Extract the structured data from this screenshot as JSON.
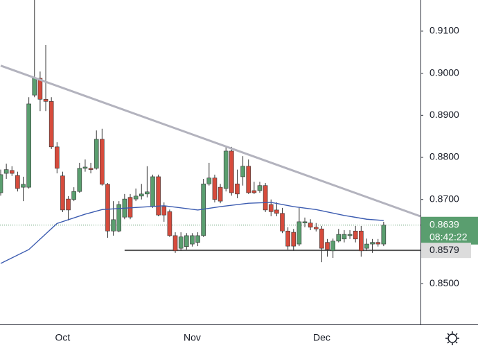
{
  "chart_data": {
    "type": "candlestick",
    "categories": [
      null,
      null,
      null,
      null,
      null,
      null,
      null,
      null,
      null,
      null,
      null,
      "Oct",
      null,
      null,
      null,
      null,
      null,
      null,
      null,
      null,
      null,
      null,
      null,
      null,
      null,
      null,
      null,
      null,
      null,
      null,
      null,
      null,
      null,
      null,
      "Nov",
      null,
      null,
      null,
      null,
      null,
      null,
      null,
      null,
      null,
      null,
      null,
      null,
      null,
      null,
      null,
      null,
      null,
      null,
      null,
      null,
      null,
      null,
      "Dec",
      null,
      null,
      null,
      null,
      null,
      null,
      null,
      null,
      null,
      null,
      null
    ],
    "open": [
      0.8716,
      0.8762,
      0.8769,
      0.8757,
      0.8729,
      0.8729,
      0.8948,
      0.8988,
      0.8938,
      0.8933,
      0.8825,
      0.8756,
      0.8701,
      0.87,
      0.8719,
      0.8774,
      0.8774,
      0.8774,
      0.8843,
      0.8736,
      0.8625,
      0.8625,
      0.8658,
      0.8705,
      0.8701,
      0.8708,
      0.8713,
      0.8683,
      0.8754,
      0.8683,
      0.8671,
      0.8614,
      0.8584,
      0.8588,
      0.8594,
      0.8598,
      0.8614,
      0.8737,
      0.8751,
      0.8729,
      0.8726,
      0.8815,
      0.8737,
      0.8754,
      0.8779,
      0.8721,
      0.8721,
      0.8733,
      0.8688,
      0.8675,
      0.8667,
      0.8625,
      0.8622,
      0.8594,
      0.8644,
      0.8644,
      0.8634,
      0.863,
      0.8598,
      0.8578,
      0.8601,
      0.8606,
      0.8614,
      0.8625,
      0.8625,
      0.8584,
      0.8594,
      0.8598,
      0.8594
    ],
    "high": [
      0.8771,
      0.8785,
      0.8779,
      0.8766,
      0.8754,
      0.8943,
      0.9174,
      0.9004,
      0.9067,
      0.8943,
      0.8836,
      0.8766,
      0.8708,
      0.8729,
      0.8787,
      0.8795,
      0.8787,
      0.8864,
      0.8868,
      0.8739,
      0.8696,
      0.8696,
      0.8713,
      0.8713,
      0.8726,
      0.8737,
      0.8779,
      0.8759,
      0.8759,
      0.8693,
      0.8676,
      0.8622,
      0.8622,
      0.862,
      0.862,
      0.8622,
      0.8749,
      0.8787,
      0.8759,
      0.8737,
      0.8828,
      0.8825,
      0.8771,
      0.8803,
      0.8795,
      0.8742,
      0.8742,
      0.8739,
      0.87,
      0.8693,
      0.868,
      0.8634,
      0.863,
      0.868,
      0.8657,
      0.8653,
      0.8644,
      0.8637,
      0.8606,
      0.8607,
      0.863,
      0.8627,
      0.8627,
      0.8637,
      0.8637,
      0.8607,
      0.8606,
      0.8606,
      0.8647
    ],
    "low": [
      0.8709,
      0.8749,
      0.8756,
      0.8719,
      0.8696,
      0.8726,
      0.8943,
      0.891,
      0.891,
      0.882,
      0.8762,
      0.867,
      0.865,
      0.8696,
      0.8716,
      0.8766,
      0.8762,
      0.8771,
      0.8733,
      0.8609,
      0.8614,
      0.8622,
      0.8653,
      0.8653,
      0.8696,
      0.87,
      0.8705,
      0.868,
      0.866,
      0.8647,
      0.8611,
      0.8573,
      0.8578,
      0.8581,
      0.8588,
      0.8589,
      0.8611,
      0.8733,
      0.8693,
      0.8691,
      0.8719,
      0.8709,
      0.8703,
      0.8733,
      0.8713,
      0.8713,
      0.8716,
      0.867,
      0.866,
      0.866,
      0.862,
      0.8581,
      0.8578,
      0.8589,
      0.8634,
      0.8627,
      0.8624,
      0.8551,
      0.8564,
      0.8561,
      0.8598,
      0.8598,
      0.8606,
      0.8598,
      0.8564,
      0.8578,
      0.8573,
      0.8588,
      0.8589
    ],
    "close": [
      0.8759,
      0.8771,
      0.8762,
      0.8726,
      0.8736,
      0.8927,
      0.8988,
      0.8938,
      0.8933,
      0.8825,
      0.8774,
      0.8675,
      0.8675,
      0.8719,
      0.8774,
      0.8777,
      0.8771,
      0.8843,
      0.8736,
      0.8625,
      0.8652,
      0.8688,
      0.8701,
      0.8658,
      0.8708,
      0.8713,
      0.8718,
      0.8754,
      0.8663,
      0.8663,
      0.8614,
      0.8578,
      0.8611,
      0.8614,
      0.8614,
      0.8614,
      0.8737,
      0.8751,
      0.87,
      0.8696,
      0.8815,
      0.8716,
      0.8713,
      0.8779,
      0.8716,
      0.8716,
      0.8733,
      0.8675,
      0.8671,
      0.8667,
      0.8625,
      0.8589,
      0.8589,
      0.8647,
      0.8647,
      0.8634,
      0.863,
      0.8584,
      0.8581,
      0.8601,
      0.8617,
      0.8617,
      0.8617,
      0.8606,
      0.8578,
      0.8594,
      0.8598,
      0.8594,
      0.8639
    ],
    "up_color": "#5a9e6f",
    "down_color": "#d64b3c",
    "wick_color": "#333333",
    "ylim": [
      0.8403,
      0.9174
    ],
    "yticks": [
      {
        "value": 0.85,
        "label": "0.8500"
      },
      {
        "value": 0.86,
        "label": "0.8600"
      },
      {
        "value": 0.87,
        "label": "0.8700"
      },
      {
        "value": 0.88,
        "label": "0.8800"
      },
      {
        "value": 0.89,
        "label": "0.8900"
      },
      {
        "value": 0.9,
        "label": "0.9000"
      },
      {
        "value": 0.91,
        "label": "0.9100"
      }
    ],
    "overlays": [
      {
        "type": "line",
        "color": "#3b5bb0",
        "width": 1.4,
        "x": [
          0,
          5,
          10,
          15,
          18,
          23,
          29,
          35,
          39,
          44,
          48,
          52,
          56,
          61,
          65,
          68
        ],
        "values": [
          0.8548,
          0.8581,
          0.8643,
          0.8665,
          0.8676,
          0.868,
          0.8685,
          0.8675,
          0.8683,
          0.8691,
          0.8693,
          0.8683,
          0.8676,
          0.8662,
          0.8653,
          0.865
        ]
      },
      {
        "type": "line",
        "color": "#b3b3be",
        "width": 3,
        "x": [
          0,
          74.5
        ],
        "values": [
          0.9018,
          0.866
        ]
      }
    ],
    "support": {
      "from": 22,
      "value": 0.8579,
      "color": "#555555"
    },
    "last_price": {
      "value": 0.8639,
      "countdown": "08:42:22",
      "color": "#5a9e6f"
    }
  }
}
